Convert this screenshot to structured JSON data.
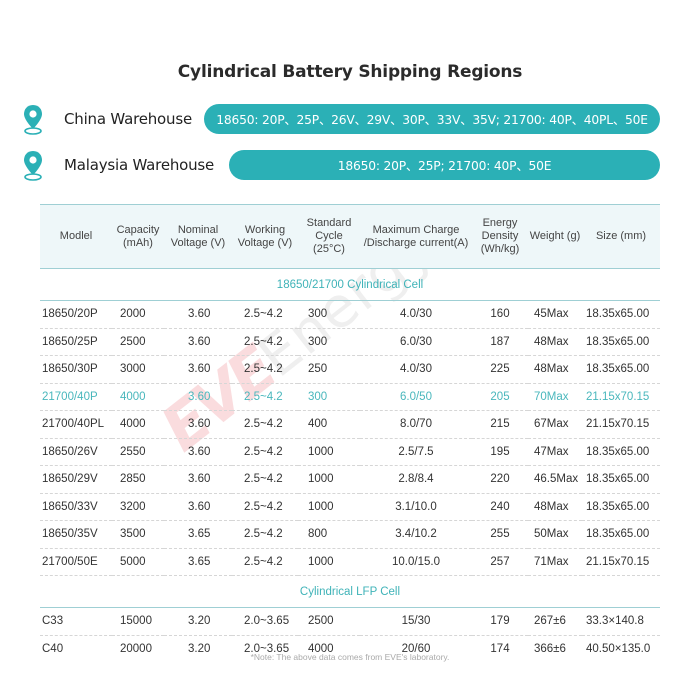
{
  "title": "Cylindrical Battery Shipping Regions",
  "colors": {
    "accent": "#2bb0b6",
    "header_bg": "#eef7f9",
    "highlight_text": "#49b7bc",
    "watermark_red": "#e63c46"
  },
  "warehouses": [
    {
      "icon": "location-pin-icon",
      "label": "China Warehouse",
      "models": "18650: 20P、25P、26V、29V、30P、33V、35V; 21700: 40P、40PL、50E"
    },
    {
      "icon": "location-pin-icon",
      "label": "Malaysia Warehouse",
      "models": "18650: 20P、25P; 21700: 40P、50E"
    }
  ],
  "table": {
    "headers": [
      "Modlel",
      "Capacity (mAh)",
      "Nominal Voltage (V)",
      "Working Voltage (V)",
      "Standard Cycle (25°C)",
      "Maximum Charge /Discharge current(A)",
      "Energy Density (Wh/kg)",
      "Weight (g)",
      "Size (mm)"
    ],
    "sections": [
      {
        "title": "18650/21700 Cylindrical Cell",
        "rows": [
          [
            "18650/20P",
            "2000",
            "3.60",
            "2.5~4.2",
            "300",
            "4.0/30",
            "160",
            "45Max",
            "18.35x65.00"
          ],
          [
            "18650/25P",
            "2500",
            "3.60",
            "2.5~4.2",
            "300",
            "6.0/30",
            "187",
            "48Max",
            "18.35x65.00"
          ],
          [
            "18650/30P",
            "3000",
            "3.60",
            "2.5~4.2",
            "250",
            "4.0/30",
            "225",
            "48Max",
            "18.35x65.00"
          ],
          [
            "21700/40P",
            "4000",
            "3.60",
            "2.5~4.2",
            "300",
            "6.0/50",
            "205",
            "70Max",
            "21.15x70.15"
          ],
          [
            "21700/40PL",
            "4000",
            "3.60",
            "2.5~4.2",
            "400",
            "8.0/70",
            "215",
            "67Max",
            "21.15x70.15"
          ],
          [
            "18650/26V",
            "2550",
            "3.60",
            "2.5~4.2",
            "1000",
            "2.5/7.5",
            "195",
            "47Max",
            "18.35x65.00"
          ],
          [
            "18650/29V",
            "2850",
            "3.60",
            "2.5~4.2",
            "1000",
            "2.8/8.4",
            "220",
            "46.5Max",
            "18.35x65.00"
          ],
          [
            "18650/33V",
            "3200",
            "3.60",
            "2.5~4.2",
            "1000",
            "3.1/10.0",
            "240",
            "48Max",
            "18.35x65.00"
          ],
          [
            "18650/35V",
            "3500",
            "3.65",
            "2.5~4.2",
            "800",
            "3.4/10.2",
            "255",
            "50Max",
            "18.35x65.00"
          ],
          [
            "21700/50E",
            "5000",
            "3.65",
            "2.5~4.2",
            "1000",
            "10.0/15.0",
            "257",
            "71Max",
            "21.15x70.15"
          ]
        ]
      },
      {
        "title": "Cylindrical LFP Cell",
        "rows": [
          [
            "C33",
            "15000",
            "3.20",
            "2.0~3.65",
            "2500",
            "15/30",
            "179",
            "267±6",
            "33.3×140.8"
          ],
          [
            "C40",
            "20000",
            "3.20",
            "2.0~3.65",
            "4000",
            "20/60",
            "174",
            "366±6",
            "40.50×135.0"
          ]
        ]
      }
    ]
  },
  "watermark": {
    "brand": "EVE",
    "suffix": "Energy"
  },
  "note": "*Note: The above data comes from EVE's laboratory."
}
